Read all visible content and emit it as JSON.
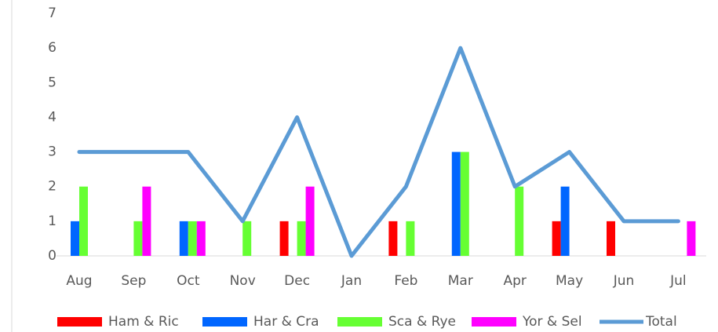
{
  "chart_data": {
    "type": "bar",
    "categories": [
      "Aug",
      "Sep",
      "Oct",
      "Nov",
      "Dec",
      "Jan",
      "Feb",
      "Mar",
      "Apr",
      "May",
      "Jun",
      "Jul"
    ],
    "series": [
      {
        "name": "Ham & Ric",
        "color": "#ff0000",
        "values": [
          0,
          0,
          0,
          0,
          1,
          0,
          1,
          0,
          0,
          1,
          1,
          0
        ]
      },
      {
        "name": "Har & Cra",
        "color": "#0066ff",
        "values": [
          1,
          0,
          1,
          0,
          0,
          0,
          0,
          3,
          0,
          2,
          0,
          0
        ]
      },
      {
        "name": "Sca & Rye",
        "color": "#66ff33",
        "values": [
          2,
          1,
          1,
          1,
          1,
          0,
          1,
          3,
          2,
          0,
          0,
          0
        ]
      },
      {
        "name": "Yor & Sel",
        "color": "#ff00ff",
        "values": [
          0,
          2,
          1,
          0,
          2,
          0,
          0,
          0,
          0,
          0,
          0,
          1
        ]
      },
      {
        "name": "Total",
        "color": "#5b9bd5",
        "type": "line",
        "values": [
          3,
          3,
          3,
          1,
          4,
          0,
          2,
          6,
          2,
          3,
          1,
          1
        ]
      }
    ],
    "ylim": [
      0,
      7
    ],
    "yticks": [
      0,
      1,
      2,
      3,
      4,
      5,
      6,
      7
    ],
    "grid": false,
    "legend": "bottom"
  }
}
